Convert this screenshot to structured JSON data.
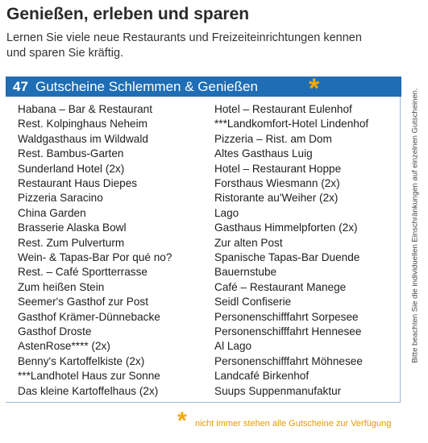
{
  "header": {
    "title": "Genießen, erleben und sparen",
    "intro": [
      "Lernen Sie viele neue Restaurants und Freizeiteinrichtungen kennen",
      "und sparen Sie kräftig."
    ]
  },
  "banner": {
    "count": "47",
    "title": "Gutscheine Schlemmen & Genießen",
    "marker": "*"
  },
  "list": {
    "left": [
      "Habana – Bar & Restaurant",
      "Rest. Kolpinghaus Neheim",
      "Waldgasthaus im Wildwald",
      "Rest. Bambus-Garten",
      "Sunderland Hotel (2x)",
      "Restaurant Haus Diepes",
      "Pizzeria Saracino",
      "China Garden",
      "Brasserie Alaska Bowl",
      "Rest. Zum Pulverturm",
      "Wein- & Tapas-Bar Por qué no?",
      "Rest. – Café Sportterrasse",
      "Zum heißen Stein",
      "Seemer's Gasthof zur Post",
      "Gasthof Krämer-Dünnebacke",
      "Gasthof Droste",
      "AstenRose**** (2x)",
      "Benny's Kartoffelkiste (2x)",
      "***Landhotel Haus zur Sonne",
      "Das kleine Kartoffelhaus (2x)"
    ],
    "right": [
      "Hotel – Restaurant Eulenhof",
      "***Landkomfort-Hotel Lindenhof",
      "Pizzeria – Rist. am Dom",
      "Altes Gasthaus Luig",
      "Hotel – Restaurant Hoppe",
      "Forsthaus Wiesmann (2x)",
      "Ristorante au'Weiher (2x)",
      "Lago",
      "Gasthaus Himmelpforten (2x)",
      "Zur alten Post",
      "Spanische Tapas-Bar Duende",
      "Bauernstube",
      "Café – Restaurant Manege",
      "Seidl Confiserie",
      "Personenschifffahrt Sorpesee",
      "Personenschifffahrt Hennesee",
      "Al Lago",
      "Personenschifffahrt Möhnesee",
      "Landcafé Birkenhof",
      "Suups Suppenmanufaktur"
    ]
  },
  "side_note": "Bitte beachten Sie die individuellen Einschränkungen auf einzelnen Gutscheinen.",
  "footnote": {
    "marker": "*",
    "text": "nicht immer stehen alle Gutscheine zur Verfügung"
  }
}
